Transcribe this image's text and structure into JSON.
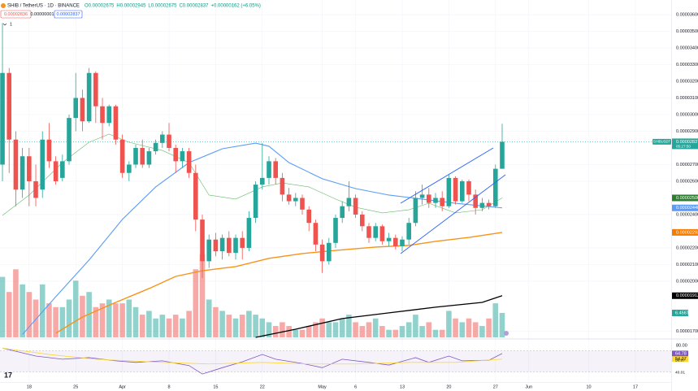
{
  "chart_data": {
    "type": "candlestick",
    "header": {
      "symbol": "SHIB / TetherUS · 1D · BINANCE",
      "ohlc": [
        "O0.00002675",
        "H0.00002945",
        "L0.00002675",
        "C0.00002837",
        "+0.00000162 (+6.05%)"
      ],
      "bid": "0.00002836",
      "spread": "0.00000001",
      "ask": "0.00002837",
      "indicator_count": "1"
    },
    "up_color": "#26a69a",
    "down_color": "#ef5350",
    "xlim": [
      -0.37,
      100.37
    ],
    "xticks": [
      {
        "value": 4,
        "label": "18"
      },
      {
        "value": 11,
        "label": "25"
      },
      {
        "value": 18,
        "label": "Apr"
      },
      {
        "value": 25,
        "label": "8"
      },
      {
        "value": 32,
        "label": "15"
      },
      {
        "value": 39,
        "label": "22"
      },
      {
        "value": 48,
        "label": "May"
      },
      {
        "value": 53,
        "label": "6"
      },
      {
        "value": 60,
        "label": "13"
      },
      {
        "value": 67,
        "label": "20"
      },
      {
        "value": 74,
        "label": "27"
      },
      {
        "value": 79,
        "label": "Jun"
      },
      {
        "value": 88,
        "label": "10"
      },
      {
        "value": 95,
        "label": "17"
      }
    ],
    "ylim": [
      1.663e-05,
      3.688e-05
    ],
    "yticks": [
      {
        "value": 3.6e-05,
        "label": "0.00003600"
      },
      {
        "value": 3.5e-05,
        "label": "0.00003500"
      },
      {
        "value": 3.4e-05,
        "label": "0.00003400"
      },
      {
        "value": 3.3e-05,
        "label": "0.00003300"
      },
      {
        "value": 3.2e-05,
        "label": "0.00003200"
      },
      {
        "value": 3.1e-05,
        "label": "0.00003100"
      },
      {
        "value": 3e-05,
        "label": "0.00003000"
      },
      {
        "value": 2.9e-05,
        "label": "0.00002900"
      },
      {
        "value": 2.7e-05,
        "label": "0.00002700"
      },
      {
        "value": 2.6e-05,
        "label": "0.00002600"
      },
      {
        "value": 2.4e-05,
        "label": "0.00002400"
      },
      {
        "value": 2.2e-05,
        "label": "0.00002200"
      },
      {
        "value": 2.1e-05,
        "label": "0.00002100"
      },
      {
        "value": 2e-05,
        "label": "0.00002000"
      },
      {
        "value": 1.7e-05,
        "label": "0.00001700"
      }
    ],
    "grid": true,
    "candles": [
      [
        2.7e-05,
        3.55e-05,
        2.6e-05,
        3.25e-05
      ],
      [
        3.25e-05,
        3.28e-05,
        2.65e-05,
        2.85e-05
      ],
      [
        2.85e-05,
        2.9e-05,
        2.45e-05,
        2.55e-05
      ],
      [
        2.55e-05,
        2.8e-05,
        2.5e-05,
        2.75e-05
      ],
      [
        2.75e-05,
        2.8e-05,
        2.45e-05,
        2.6e-05
      ],
      [
        2.6e-05,
        2.7e-05,
        2.45e-05,
        2.5e-05
      ],
      [
        2.55e-05,
        2.9e-05,
        2.5e-05,
        2.85e-05
      ],
      [
        2.85e-05,
        2.95e-05,
        2.68e-05,
        2.72e-05
      ],
      [
        2.72e-05,
        2.75e-05,
        2.58e-05,
        2.6e-05
      ],
      [
        2.62e-05,
        2.76e-05,
        2.6e-05,
        2.72e-05
      ],
      [
        2.72e-05,
        3e-05,
        2.7e-05,
        2.98e-05
      ],
      [
        2.98e-05,
        3.25e-05,
        2.9e-05,
        3.1e-05
      ],
      [
        3.1e-05,
        3.15e-05,
        2.9e-05,
        2.96e-05
      ],
      [
        2.96e-05,
        3.28e-05,
        2.95e-05,
        3.25e-05
      ],
      [
        3.25e-05,
        3.26e-05,
        2.95e-05,
        3.05e-05
      ],
      [
        3.05e-05,
        3.1e-05,
        2.85e-05,
        2.95e-05
      ],
      [
        2.95e-05,
        3.06e-05,
        2.93e-05,
        3.05e-05
      ],
      [
        3.05e-05,
        3.06e-05,
        2.82e-05,
        2.85e-05
      ],
      [
        2.85e-05,
        2.88e-05,
        2.62e-05,
        2.65e-05
      ],
      [
        2.65e-05,
        2.72e-05,
        2.6e-05,
        2.7e-05
      ],
      [
        2.7e-05,
        2.82e-05,
        2.68e-05,
        2.8e-05
      ],
      [
        2.8e-05,
        2.85e-05,
        2.68e-05,
        2.7e-05
      ],
      [
        2.7e-05,
        2.8e-05,
        2.68e-05,
        2.78e-05
      ],
      [
        2.78e-05,
        2.85e-05,
        2.76e-05,
        2.83e-05
      ],
      [
        2.83e-05,
        2.9e-05,
        2.8e-05,
        2.88e-05
      ],
      [
        2.88e-05,
        2.95e-05,
        2.78e-05,
        2.8e-05
      ],
      [
        2.8e-05,
        2.82e-05,
        2.65e-05,
        2.72e-05
      ],
      [
        2.72e-05,
        2.8e-05,
        2.68e-05,
        2.78e-05
      ],
      [
        2.78e-05,
        2.8e-05,
        2.62e-05,
        2.65e-05
      ],
      [
        2.65e-05,
        2.7e-05,
        2.3e-05,
        2.37e-05
      ],
      [
        2.37e-05,
        2.4e-05,
        2.02e-05,
        2.12e-05
      ],
      [
        2.12e-05,
        2.28e-05,
        2.08e-05,
        2.25e-05
      ],
      [
        2.25e-05,
        2.29e-05,
        2.15e-05,
        2.18e-05
      ],
      [
        2.18e-05,
        2.28e-05,
        2.13e-05,
        2.26e-05
      ],
      [
        2.26e-05,
        2.3e-05,
        2.15e-05,
        2.17e-05
      ],
      [
        2.17e-05,
        2.28e-05,
        2.13e-05,
        2.26e-05
      ],
      [
        2.26e-05,
        2.3e-05,
        2.13e-05,
        2.2e-05
      ],
      [
        2.2e-05,
        2.42e-05,
        2.18e-05,
        2.38e-05
      ],
      [
        2.38e-05,
        2.6e-05,
        2.35e-05,
        2.58e-05
      ],
      [
        2.58e-05,
        2.83e-05,
        2.55e-05,
        2.62e-05
      ],
      [
        2.62e-05,
        2.75e-05,
        2.58e-05,
        2.72e-05
      ],
      [
        2.72e-05,
        2.74e-05,
        2.58e-05,
        2.62e-05
      ],
      [
        2.62e-05,
        2.65e-05,
        2.48e-05,
        2.52e-05
      ],
      [
        2.52e-05,
        2.56e-05,
        2.46e-05,
        2.48e-05
      ],
      [
        2.48e-05,
        2.53e-05,
        2.45e-05,
        2.5e-05
      ],
      [
        2.5e-05,
        2.52e-05,
        2.4e-05,
        2.43e-05
      ],
      [
        2.43e-05,
        2.45e-05,
        2.3e-05,
        2.35e-05
      ],
      [
        2.35e-05,
        2.37e-05,
        2.18e-05,
        2.22e-05
      ],
      [
        2.22e-05,
        2.25e-05,
        2.05e-05,
        2.12e-05
      ],
      [
        2.12e-05,
        2.26e-05,
        2.1e-05,
        2.23e-05
      ],
      [
        2.23e-05,
        2.4e-05,
        2.2e-05,
        2.38e-05
      ],
      [
        2.38e-05,
        2.48e-05,
        2.35e-05,
        2.45e-05
      ],
      [
        2.45e-05,
        2.6e-05,
        2.42e-05,
        2.5e-05
      ],
      [
        2.5e-05,
        2.52e-05,
        2.38e-05,
        2.4e-05
      ],
      [
        2.4e-05,
        2.42e-05,
        2.3e-05,
        2.33e-05
      ],
      [
        2.33e-05,
        2.35e-05,
        2.23e-05,
        2.26e-05
      ],
      [
        2.26e-05,
        2.35e-05,
        2.24e-05,
        2.33e-05
      ],
      [
        2.33e-05,
        2.34e-05,
        2.22e-05,
        2.24e-05
      ],
      [
        2.24e-05,
        2.29e-05,
        2.21e-05,
        2.26e-05
      ],
      [
        2.26e-05,
        2.28e-05,
        2.19e-05,
        2.21e-05
      ],
      [
        2.21e-05,
        2.27e-05,
        2.18e-05,
        2.25e-05
      ],
      [
        2.25e-05,
        2.38e-05,
        2.22e-05,
        2.35e-05
      ],
      [
        2.35e-05,
        2.54e-05,
        2.33e-05,
        2.5e-05
      ],
      [
        2.5e-05,
        2.58e-05,
        2.46e-05,
        2.52e-05
      ],
      [
        2.52e-05,
        2.56e-05,
        2.44e-05,
        2.47e-05
      ],
      [
        2.47e-05,
        2.53e-05,
        2.44e-05,
        2.5e-05
      ],
      [
        2.5e-05,
        2.54e-05,
        2.42e-05,
        2.45e-05
      ],
      [
        2.45e-05,
        2.64e-05,
        2.44e-05,
        2.62e-05
      ],
      [
        2.62e-05,
        2.63e-05,
        2.46e-05,
        2.48e-05
      ],
      [
        2.48e-05,
        2.61e-05,
        2.47e-05,
        2.6e-05
      ],
      [
        2.6e-05,
        2.61e-05,
        2.48e-05,
        2.52e-05
      ],
      [
        2.52e-05,
        2.55e-05,
        2.4e-05,
        2.44e-05
      ],
      [
        2.44e-05,
        2.5e-05,
        2.42e-05,
        2.47e-05
      ],
      [
        2.47e-05,
        2.49e-05,
        2.43e-05,
        2.45e-05
      ],
      [
        2.45e-05,
        2.7e-05,
        2.44e-05,
        2.675e-05
      ],
      [
        2.675e-05,
        2.945e-05,
        2.675e-05,
        2.837e-05
      ]
    ],
    "last_price": {
      "symbol": "SHIBUSDT",
      "label": "0.00002837",
      "value": 2.837e-05,
      "countdown": "05:27:50"
    },
    "lines": [
      {
        "color": "#5b9cf6",
        "width": 1.1,
        "label": "0.00002440",
        "x": [
          3,
          8,
          13,
          18,
          23,
          28,
          33,
          38,
          40,
          43,
          48,
          53,
          58,
          63,
          68,
          75
        ],
        "values": [
          1.68e-05,
          1.907e-05,
          2.127e-05,
          2.371e-05,
          2.566e-05,
          2.712e-05,
          2.795e-05,
          2.829e-05,
          2.81e-05,
          2.712e-05,
          2.615e-05,
          2.556e-05,
          2.517e-05,
          2.493e-05,
          2.468e-05,
          2.44e-05
        ]
      },
      {
        "color": "#66bb6a",
        "width": 0.6,
        "label": "0.00002500",
        "x": [
          0,
          4,
          9,
          13,
          16,
          19,
          24,
          28,
          31,
          35,
          39,
          42,
          46,
          50,
          53,
          57,
          61,
          64,
          68,
          72,
          75
        ],
        "values": [
          2.395e-05,
          2.517e-05,
          2.712e-05,
          2.834e-05,
          2.883e-05,
          2.834e-05,
          2.785e-05,
          2.712e-05,
          2.517e-05,
          2.493e-05,
          2.566e-05,
          2.59e-05,
          2.566e-05,
          2.493e-05,
          2.444e-05,
          2.41e-05,
          2.429e-05,
          2.468e-05,
          2.41e-05,
          2.429e-05,
          2.5e-05
        ]
      },
      {
        "color": "#f7931a",
        "width": 1.4,
        "label": "0.00002293",
        "x": [
          8,
          12,
          17,
          22,
          26,
          30,
          35,
          40,
          45,
          50,
          56,
          61,
          65,
          70,
          75
        ],
        "values": [
          1.688e-05,
          1.785e-05,
          1.873e-05,
          1.956e-05,
          2.029e-05,
          2.063e-05,
          2.088e-05,
          2.137e-05,
          2.166e-05,
          2.185e-05,
          2.205e-05,
          2.215e-05,
          2.239e-05,
          2.263e-05,
          2.293e-05
        ]
      },
      {
        "color": "#000000",
        "width": 1.3,
        "label": "0.00001913",
        "x": [
          38,
          44,
          51,
          58,
          65,
          72,
          75
        ],
        "values": [
          1.663e-05,
          1.712e-05,
          1.776e-05,
          1.81e-05,
          1.844e-05,
          1.873e-05,
          1.913e-05
        ]
      }
    ],
    "volume": {
      "label": "6.456T",
      "values": [
        16,
        12,
        18,
        14,
        12,
        10,
        14,
        9,
        8,
        8,
        10,
        15,
        11,
        12,
        8,
        9,
        10,
        9,
        9,
        10,
        8,
        6,
        7,
        5,
        6,
        5,
        6,
        5,
        7,
        18,
        22,
        10,
        8,
        7,
        6,
        5,
        6,
        7,
        6,
        5,
        4,
        3,
        4,
        3,
        2,
        2,
        3,
        4,
        5,
        4,
        4,
        5,
        6,
        4,
        3,
        4,
        5,
        3,
        2,
        2,
        3,
        4,
        6,
        3,
        4,
        2,
        2,
        7,
        5,
        4,
        5,
        4,
        3,
        5,
        9,
        6.456
      ]
    },
    "rsi": {
      "ylim": [
        10.8,
        87.7
      ],
      "band": [
        30,
        70
      ],
      "yticks": [
        {
          "value": 80,
          "label": "80.00"
        }
      ],
      "side_labels": [
        "58.07",
        "40.01"
      ],
      "lines": [
        {
          "color": "#7e57c2",
          "label": "64.78",
          "x": [
            0,
            5,
            9,
            13,
            17,
            20,
            24,
            28,
            30,
            33,
            36,
            39,
            41,
            45,
            48,
            51,
            55,
            58,
            62,
            64,
            67,
            69,
            73,
            75
          ],
          "values": [
            75,
            60,
            54,
            57,
            51,
            48,
            51,
            42,
            26,
            38,
            49,
            63,
            54,
            46,
            38,
            54,
            48,
            43,
            57,
            48,
            60,
            51,
            52,
            64.78
          ]
        },
        {
          "color": "#fdd835",
          "label": "54.27",
          "x": [
            0,
            7,
            14,
            24,
            31,
            39,
            46,
            53,
            61,
            68,
            75
          ],
          "values": [
            75,
            63,
            54,
            48,
            45,
            48,
            45,
            45,
            48,
            48,
            54.27
          ]
        }
      ]
    }
  }
}
